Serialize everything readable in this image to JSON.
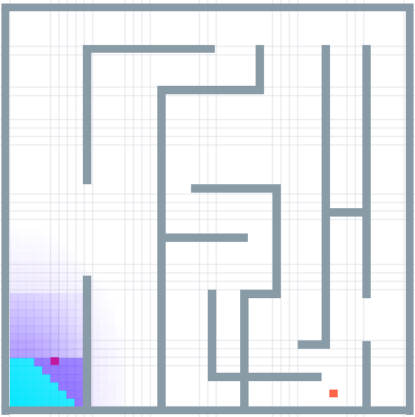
{
  "maze": {
    "colors": {
      "background": "#ffffff",
      "page": "#e8ebf0",
      "wall": "#8a9ba8",
      "grid": "#dadde3",
      "agent": "#c2189d",
      "goal": "#ff6347",
      "heat_low": "#a98cff",
      "heat_mid": "#7f5cff",
      "heat_high": "#00e5ff"
    },
    "agent_icon": "agent-marker-square",
    "goal_icon": "goal-marker-square"
  }
}
